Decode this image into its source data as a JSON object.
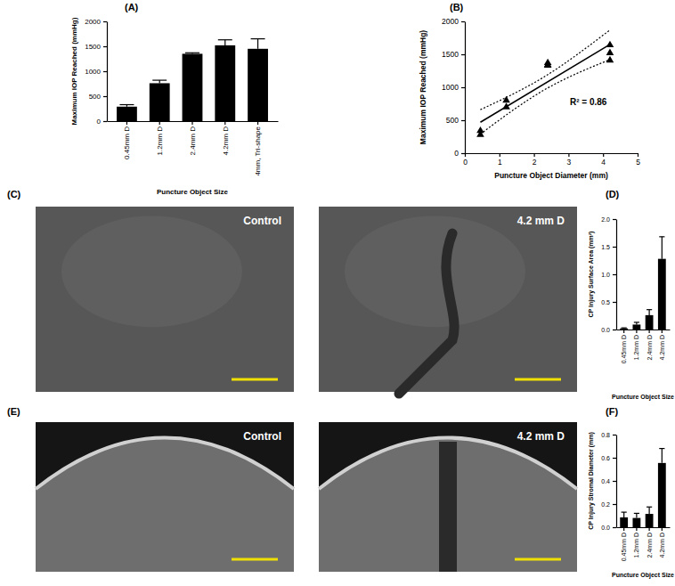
{
  "chart_data": [
    {
      "type": "bar",
      "label": "(A)",
      "x_label": "Puncture Object Size",
      "y_label": "Maximum IOP Reached (mmHg)",
      "categories": [
        "0.45mm D",
        "1.2mm D",
        "2.4mm D",
        "4.2mm D",
        "4mm, Tri-shape"
      ],
      "values": [
        290,
        760,
        1350,
        1520,
        1450
      ],
      "errors": [
        40,
        60,
        20,
        110,
        200
      ],
      "color": "#000000",
      "ylim": [
        0,
        2000
      ],
      "yticks": [
        0,
        500,
        1000,
        1500,
        2000
      ]
    },
    {
      "type": "scatter",
      "label": "(B)",
      "x_label": "Puncture Object Diameter (mm)",
      "y_label": "Maximum IOP Reached (mmHg)",
      "annotation": "R² = 0.86",
      "x": [
        0.45,
        0.45,
        1.2,
        1.2,
        2.4,
        2.4,
        2.4,
        4.2,
        4.2,
        4.2
      ],
      "values": [
        340,
        280,
        800,
        700,
        1370,
        1340,
        1330,
        1640,
        1520,
        1410
      ],
      "marker": "triangle",
      "color": "#000000",
      "fit": {
        "x": [
          0.45,
          4.2
        ],
        "values": [
          470,
          1650
        ]
      },
      "ci_upper": {
        "x": [
          0.45,
          2.3,
          4.2
        ],
        "values": [
          660,
          1160,
          1870
        ]
      },
      "ci_lower": {
        "x": [
          0.45,
          2.3,
          4.2
        ],
        "values": [
          290,
          960,
          1420
        ]
      },
      "xlim": [
        0,
        5
      ],
      "xticks": [
        0,
        1,
        2,
        3,
        4,
        5
      ],
      "ylim": [
        0,
        2000
      ],
      "yticks": [
        0,
        500,
        1000,
        1500,
        2000
      ]
    },
    {
      "type": "image",
      "label": "(C)",
      "panels": [
        "Control",
        "4.2 mm D"
      ]
    },
    {
      "type": "bar",
      "label": "(D)",
      "x_label": "Puncture Object Size",
      "y_label": "CP Injury Surface Area (mm²)",
      "categories": [
        "0.45mm D",
        "1.2mm D",
        "2.4mm D",
        "4.2mm D"
      ],
      "values": [
        0.02,
        0.09,
        0.26,
        1.28
      ],
      "errors": [
        0.01,
        0.04,
        0.1,
        0.4
      ],
      "color": "#000000",
      "ylim": [
        0,
        2
      ],
      "yticks": [
        {
          "value": 0,
          "label": "0.0"
        },
        0.5,
        {
          "value": 1,
          "label": "1.0"
        },
        1.5,
        {
          "value": 2,
          "label": "2.0"
        }
      ]
    },
    {
      "type": "image",
      "label": "(E)",
      "panels": [
        "Control",
        "4.2 mm D"
      ]
    },
    {
      "type": "bar",
      "label": "(F)",
      "x_label": "Puncture Object Size",
      "y_label": "CP Injury Stromal Diameter (mm)",
      "categories": [
        "0.45mm D",
        "1.2mm D",
        "2.4mm D",
        "4.2mm D"
      ],
      "values": [
        0.085,
        0.08,
        0.115,
        0.555
      ],
      "errors": [
        0.045,
        0.04,
        0.06,
        0.125
      ],
      "color": "#000000",
      "ylim": [
        0,
        0.8
      ],
      "yticks": [
        {
          "value": 0,
          "label": "0.0"
        },
        0.2,
        0.4,
        0.6,
        0.8
      ]
    }
  ]
}
